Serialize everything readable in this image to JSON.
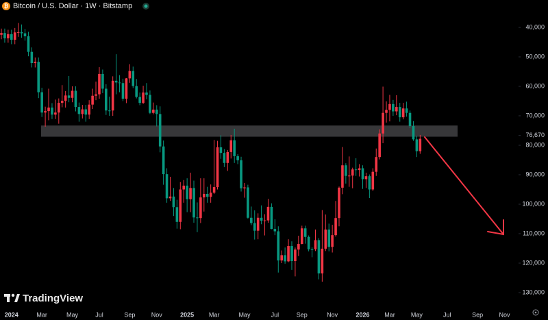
{
  "chart_data": {
    "type": "candlestick",
    "title": "Bitcoin / U.S. Dollar · 1W · Bitstamp",
    "brand": "TradingView",
    "inverted": true,
    "up_color": "#089981",
    "down_color": "#f23645",
    "zone": [
      73300,
      77100
    ],
    "zone_color": "#3a3a3c",
    "arrow_color": "#f23645",
    "ylim": [
      30700,
      135350
    ],
    "yticks": [
      {
        "value": 40000,
        "label": "40,000"
      },
      {
        "value": 50000,
        "label": "50,000"
      },
      {
        "value": 60000,
        "label": "60,000"
      },
      {
        "value": 70000,
        "label": "70,000"
      },
      {
        "value": 76670,
        "label": "76,670"
      },
      {
        "value": 80000,
        "label": "80,000"
      },
      {
        "value": 90000,
        "label": "90,000"
      },
      {
        "value": 100000,
        "label": "100,000"
      },
      {
        "value": 110000,
        "label": "110,000"
      },
      {
        "value": 120000,
        "label": "120,000"
      },
      {
        "value": 130000,
        "label": "130,000"
      }
    ],
    "categories": [
      null,
      null,
      null,
      "2024",
      null,
      null,
      null,
      null,
      null,
      null,
      null,
      null,
      "Mar",
      null,
      null,
      null,
      null,
      null,
      null,
      null,
      null,
      "May",
      null,
      null,
      null,
      null,
      null,
      null,
      null,
      "Jul",
      null,
      null,
      null,
      null,
      null,
      null,
      null,
      null,
      "Sep",
      null,
      null,
      null,
      null,
      null,
      null,
      null,
      "Nov",
      null,
      null,
      null,
      null,
      null,
      null,
      null,
      null,
      "2025",
      null,
      null,
      null,
      null,
      null,
      null,
      null,
      "Mar",
      null,
      null,
      null,
      null,
      null,
      null,
      null,
      null,
      "May",
      null,
      null,
      null,
      null,
      null,
      null,
      null,
      null,
      "Jul",
      null,
      null,
      null,
      null,
      null,
      null,
      null,
      "Sep",
      null,
      null,
      null,
      null,
      null,
      null,
      null,
      null,
      "Nov",
      null,
      null,
      null,
      null,
      null,
      null,
      null,
      null,
      "2026",
      null,
      null,
      null,
      null,
      null,
      null,
      null,
      "Mar",
      null,
      null,
      null,
      null,
      null,
      null,
      null,
      "May",
      null,
      null,
      null,
      null,
      null,
      null,
      null,
      null,
      "Jul",
      null,
      null,
      null,
      null,
      null,
      null,
      null,
      null,
      "Sep",
      null,
      null,
      null,
      null,
      null,
      null,
      null,
      "Nov",
      null,
      null
    ],
    "open": [
      42500,
      41900,
      43700,
      42300,
      44200,
      41700,
      41600,
      42000,
      43000,
      48300,
      52100,
      51700,
      62000,
      68900,
      68400,
      67200,
      69600,
      68900,
      65600,
      64900,
      63100,
      63900,
      61500,
      67000,
      69400,
      67800,
      69600,
      66200,
      63200,
      62700,
      55800,
      60800,
      68200,
      68200,
      58100,
      58700,
      58900,
      64200,
      57300,
      54800,
      59900,
      63600,
      65600,
      62100,
      62900,
      69000,
      67900,
      69400,
      80400,
      89800,
      98000,
      97400,
      101000,
      106000,
      95000,
      93700,
      98300,
      94500,
      104500,
      104700,
      97700,
      96500,
      97500,
      96100,
      94200,
      80700,
      82600,
      86000,
      82300,
      78300,
      83700,
      85100,
      94600,
      94300,
      104600,
      106400,
      109000,
      104600,
      105600,
      105500,
      100900,
      108400,
      109200,
      119100,
      117300,
      119400,
      114200,
      119300,
      115400,
      113500,
      108200,
      111100,
      115300,
      115300,
      112200,
      123500,
      115100,
      108600,
      114500,
      110500,
      104700,
      94400,
      86800,
      90400,
      90300,
      88200,
      88400,
      87800,
      91500,
      90500,
      95000,
      89000,
      84000,
      76000,
      69000,
      68000,
      66000,
      68500,
      67000,
      70500,
      67500,
      69000,
      73500,
      78000,
      82000,
      null,
      null,
      null,
      null,
      null,
      null,
      null,
      null,
      null,
      null,
      null,
      null,
      null,
      null,
      null,
      null,
      null,
      null,
      null,
      null,
      null,
      null,
      null,
      null,
      null,
      null,
      null
    ],
    "high": [
      44000,
      45200,
      45200,
      45700,
      45700,
      43200,
      43500,
      44500,
      49800,
      53600,
      53600,
      64000,
      70400,
      73700,
      71500,
      71100,
      71100,
      72700,
      67100,
      67200,
      65400,
      65400,
      68500,
      72000,
      70900,
      72000,
      71100,
      67700,
      64700,
      64200,
      62300,
      69700,
      70000,
      70000,
      62700,
      62000,
      65000,
      65700,
      58800,
      60600,
      64100,
      66400,
      66000,
      64400,
      69400,
      69500,
      73600,
      82400,
      93400,
      99500,
      98900,
      104000,
      108300,
      108500,
      99500,
      102700,
      102700,
      106300,
      109500,
      106400,
      102500,
      99500,
      99500,
      96500,
      95000,
      84600,
      87400,
      88700,
      84500,
      86000,
      86400,
      95700,
      97800,
      104900,
      107100,
      112000,
      111900,
      106800,
      110600,
      106300,
      108500,
      110500,
      123200,
      120000,
      120200,
      119700,
      122300,
      124500,
      117600,
      113600,
      113400,
      116000,
      118000,
      115900,
      125500,
      126300,
      115900,
      116000,
      116400,
      111000,
      107500,
      96600,
      93000,
      94100,
      94600,
      90400,
      90600,
      94800,
      94500,
      97900,
      95500,
      90400,
      84800,
      79300,
      72300,
      71900,
      70000,
      69800,
      72000,
      71200,
      70300,
      74200,
      78500,
      84000,
      82900,
      null,
      null,
      null,
      null,
      null,
      null,
      null,
      null,
      null,
      null,
      null,
      null,
      null,
      null,
      null,
      null,
      null,
      null,
      null,
      null,
      null,
      null,
      null,
      null,
      null,
      null,
      null
    ],
    "low": [
      40400,
      40400,
      40800,
      40800,
      40200,
      38500,
      39000,
      40500,
      41500,
      46800,
      50200,
      50200,
      60500,
      66900,
      60800,
      65700,
      64500,
      64100,
      59600,
      61600,
      56500,
      60000,
      60000,
      65500,
      66300,
      66300,
      64700,
      60800,
      58400,
      53500,
      54300,
      59300,
      63500,
      56600,
      49100,
      56200,
      57400,
      57200,
      52500,
      53300,
      57500,
      62100,
      59800,
      58900,
      61400,
      65500,
      66400,
      66800,
      78400,
      87800,
      90700,
      94500,
      98500,
      92500,
      91800,
      91200,
      89300,
      92000,
      99400,
      91200,
      91200,
      94100,
      93300,
      78200,
      78500,
      76600,
      81300,
      81600,
      76500,
      74400,
      83000,
      83900,
      92800,
      93400,
      100800,
      102100,
      103100,
      100400,
      103400,
      98200,
      99700,
      105100,
      107500,
      115700,
      114700,
      111900,
      112600,
      114700,
      110700,
      107300,
      107300,
      110600,
      114600,
      108600,
      111500,
      102000,
      103500,
      106600,
      107000,
      98900,
      94000,
      80600,
      86100,
      83800,
      87600,
      84400,
      86400,
      86800,
      89300,
      89900,
      87800,
      81100,
      74600,
      60100,
      65100,
      62900,
      64600,
      63000,
      65600,
      65600,
      65200,
      68200,
      71800,
      76800,
      76500,
      null,
      null,
      null,
      null,
      null,
      null,
      null,
      null,
      null,
      null,
      null,
      null,
      null,
      null,
      null,
      null,
      null,
      null,
      null,
      null,
      null,
      null,
      null,
      null,
      null,
      null,
      null
    ],
    "close": [
      41900,
      43700,
      42300,
      44200,
      41700,
      41600,
      42000,
      43000,
      48300,
      52100,
      51700,
      62000,
      68900,
      68400,
      67200,
      69600,
      68900,
      65600,
      64900,
      63100,
      63900,
      61500,
      67000,
      69400,
      67800,
      69600,
      66200,
      63200,
      62700,
      55800,
      60800,
      68200,
      68200,
      58100,
      58700,
      58900,
      64200,
      57300,
      54800,
      59900,
      63600,
      65600,
      62100,
      62900,
      69000,
      67900,
      69400,
      80400,
      89800,
      98000,
      97400,
      101000,
      106000,
      95000,
      93700,
      98300,
      94500,
      104500,
      104700,
      97700,
      96500,
      97500,
      96100,
      94200,
      80700,
      82600,
      86000,
      82300,
      78300,
      83700,
      85100,
      94600,
      94300,
      104600,
      106400,
      109000,
      104600,
      105600,
      105500,
      100900,
      108400,
      109200,
      119100,
      117300,
      119400,
      114200,
      119300,
      115400,
      113500,
      108200,
      111100,
      115300,
      115300,
      112200,
      123500,
      115100,
      108600,
      114500,
      110500,
      104700,
      94400,
      86800,
      90400,
      90300,
      88200,
      88400,
      87800,
      91500,
      90500,
      95000,
      89000,
      84000,
      76000,
      69000,
      68000,
      66000,
      68500,
      67000,
      70500,
      67500,
      69000,
      73500,
      78000,
      82000,
      77800,
      null,
      null,
      null,
      null,
      null,
      null,
      null,
      null,
      null,
      null,
      null,
      null,
      null,
      null,
      null,
      null,
      null,
      null,
      null,
      null,
      null,
      null,
      null,
      null,
      null,
      null,
      null
    ]
  }
}
